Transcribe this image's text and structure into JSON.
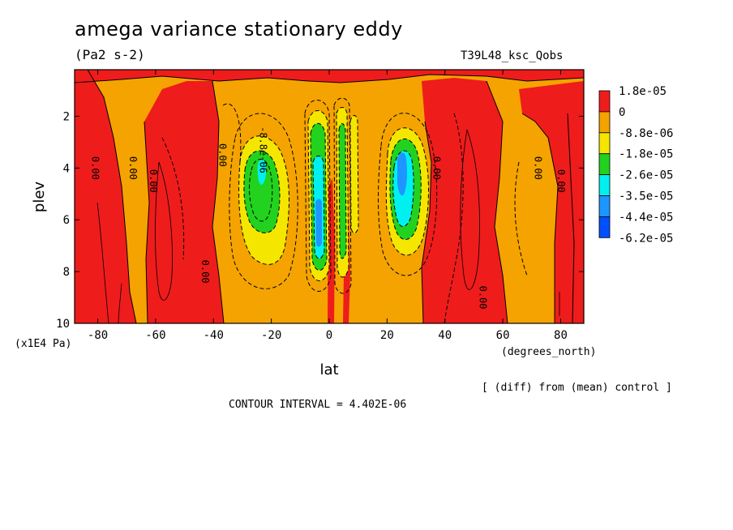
{
  "header": {
    "title": "amega variance stationary eddy",
    "units": "(Pa2 s-2)",
    "run_id": "T39L48_ksc_Qobs"
  },
  "footer": {
    "diff_note": "[ (diff) from (mean) control ]",
    "contour_interval": "CONTOUR INTERVAL = 4.402E-06"
  },
  "chart_data": {
    "type": "heatmap",
    "title": "amega variance stationary eddy",
    "xlabel": "lat",
    "xunits": "(degrees_north)",
    "ylabel": "plev",
    "yunits": "(x1E4 Pa)",
    "xlim": [
      -88,
      88
    ],
    "ylim": [
      10,
      0.2
    ],
    "y_inverted": true,
    "xticks": [
      -80,
      -60,
      -40,
      -20,
      0,
      20,
      40,
      60,
      80
    ],
    "yticks": [
      2,
      4,
      6,
      8,
      10
    ],
    "colorbar": {
      "labels": [
        "1.8e-05",
        "0",
        "-8.8e-06",
        "-1.8e-05",
        "-2.6e-05",
        "-3.5e-05",
        "-4.4e-05",
        "-6.2e-05"
      ],
      "colors": [
        "#ef1c1c",
        "#f5a300",
        "#f5e600",
        "#22d21e",
        "#00f0f0",
        "#1e96ff",
        "#0050ff"
      ]
    },
    "contour_labels": [
      {
        "text": "0.00",
        "lat": -82,
        "plev": 4.0
      },
      {
        "text": "0.00",
        "lat": -69,
        "plev": 4.0
      },
      {
        "text": "0.00",
        "lat": -62,
        "plev": 4.5
      },
      {
        "text": "0.00",
        "lat": -38,
        "plev": 3.5
      },
      {
        "text": "0.00",
        "lat": -44,
        "plev": 8.0
      },
      {
        "text": "-8.8e-06",
        "lat": -24,
        "plev": 3.3
      },
      {
        "text": "0.00",
        "lat": 36,
        "plev": 4.0
      },
      {
        "text": "0.00",
        "lat": 52,
        "plev": 9.0
      },
      {
        "text": "0.00",
        "lat": 71,
        "plev": 4.0
      },
      {
        "text": "0.00",
        "lat": 79,
        "plev": 4.5
      }
    ],
    "features": [
      {
        "name": "southern negative core",
        "lat": -24,
        "plev": 4.3,
        "min_level": "-2.6e-05"
      },
      {
        "name": "equatorial negative core",
        "lat": -3,
        "plev": 5.5,
        "min_level": "-3.5e-05"
      },
      {
        "name": "northern negative core",
        "lat": 26,
        "plev": 4.3,
        "min_level": "-4.4e-05"
      }
    ]
  }
}
